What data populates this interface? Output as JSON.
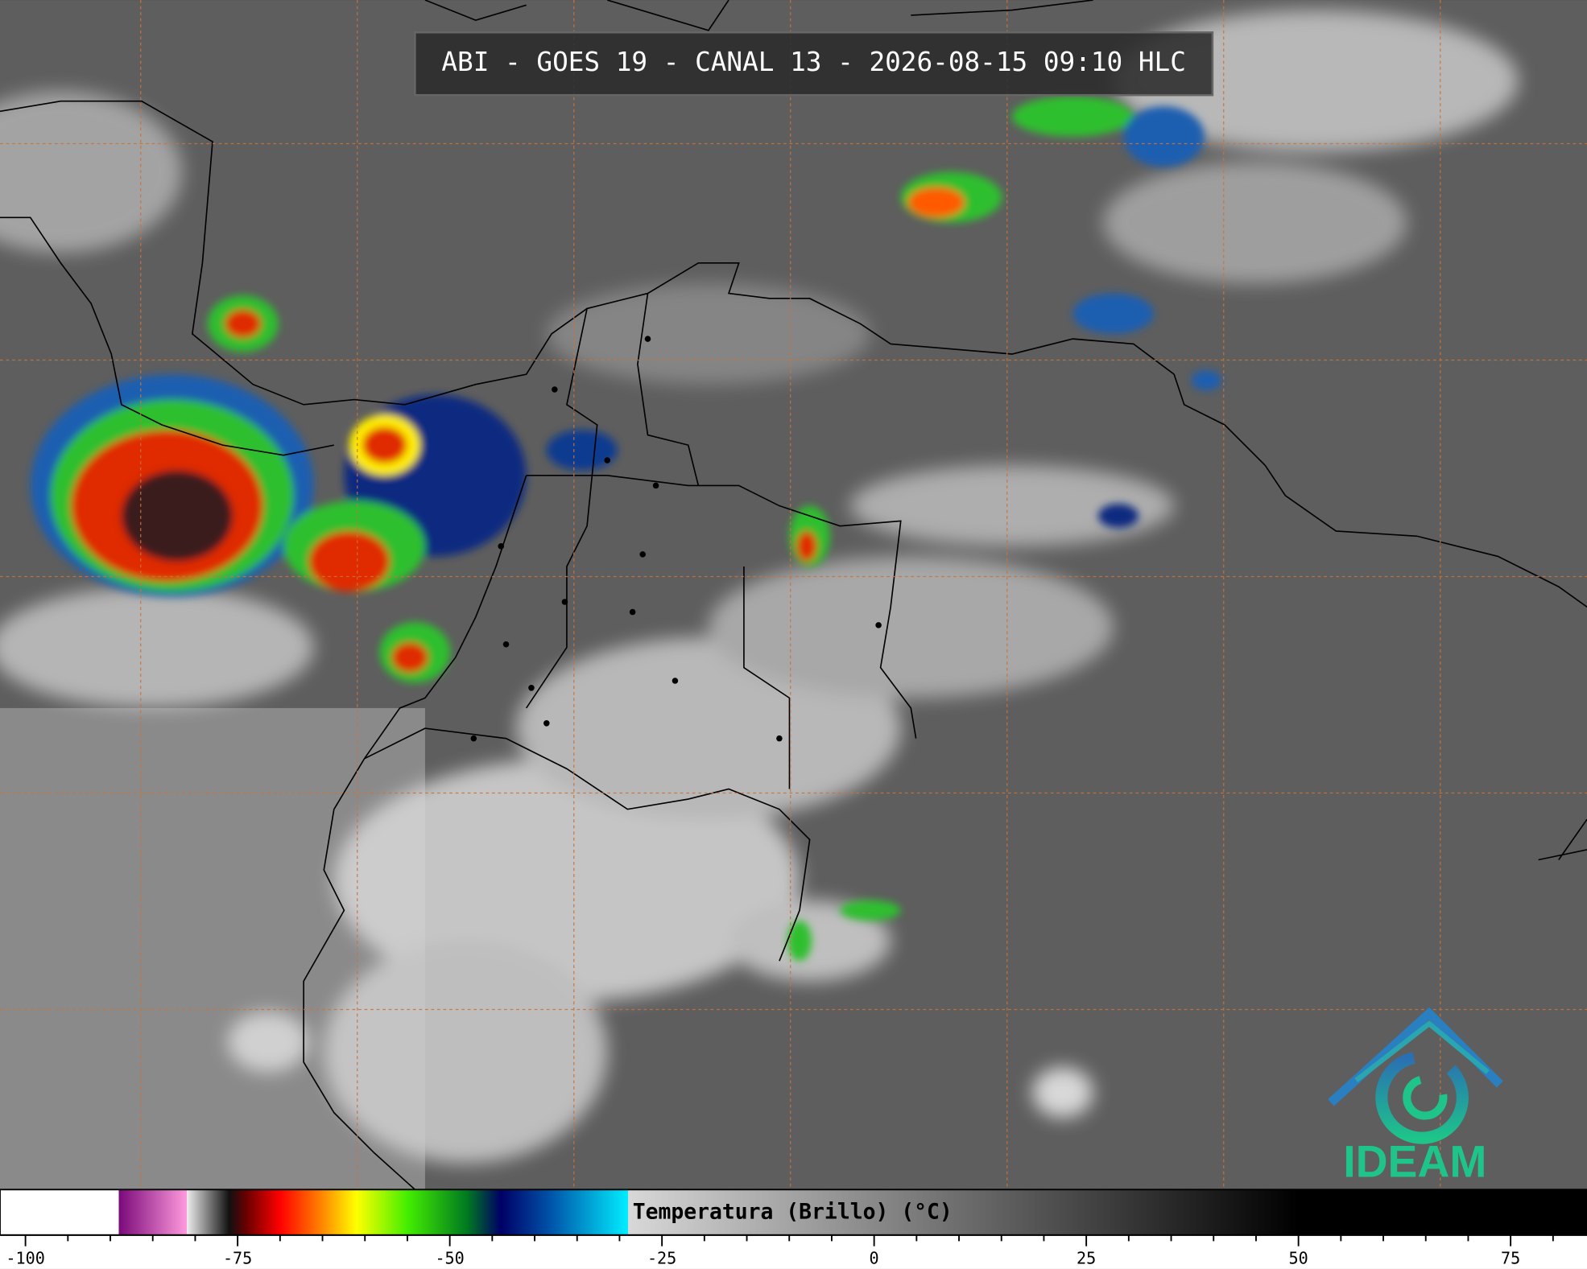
{
  "header": {
    "title": "ABI - GOES 19 - CANAL 13 - 2026-08-15 09:10 HLC"
  },
  "colorbar": {
    "label": "Temperatura (Brillo) (°C)",
    "xlim": [
      -103,
      84
    ],
    "xticks": [
      -100,
      -75,
      -50,
      -25,
      0,
      25,
      50,
      75
    ],
    "minor_xticks": [
      -95,
      -90,
      -85,
      -80,
      -70,
      -65,
      -60,
      -55,
      -45,
      -40,
      -35,
      -30,
      -20,
      -15,
      -10,
      -5,
      5,
      10,
      15,
      20,
      30,
      35,
      40,
      45,
      55,
      60,
      65,
      70,
      80
    ],
    "stops": [
      {
        "value": -103,
        "color": "#ffffff"
      },
      {
        "value": -89,
        "color": "#ffffff"
      },
      {
        "value": -89,
        "color": "#7a0a7a"
      },
      {
        "value": -81,
        "color": "#ff99dd"
      },
      {
        "value": -81,
        "color": "#eeeeee"
      },
      {
        "value": -76,
        "color": "#111111"
      },
      {
        "value": -74,
        "color": "#6a0000"
      },
      {
        "value": -70,
        "color": "#ff0000"
      },
      {
        "value": -65,
        "color": "#ff8800"
      },
      {
        "value": -61,
        "color": "#ffff00"
      },
      {
        "value": -55,
        "color": "#44ee00"
      },
      {
        "value": -48,
        "color": "#007a20"
      },
      {
        "value": -44,
        "color": "#000066"
      },
      {
        "value": -38,
        "color": "#0055aa"
      },
      {
        "value": -29,
        "color": "#00eeff"
      },
      {
        "value": -29,
        "color": "#d8d8d8"
      },
      {
        "value": 50,
        "color": "#000000"
      },
      {
        "value": 84,
        "color": "#000000"
      }
    ]
  },
  "logo": {
    "text": "IDEAM"
  }
}
